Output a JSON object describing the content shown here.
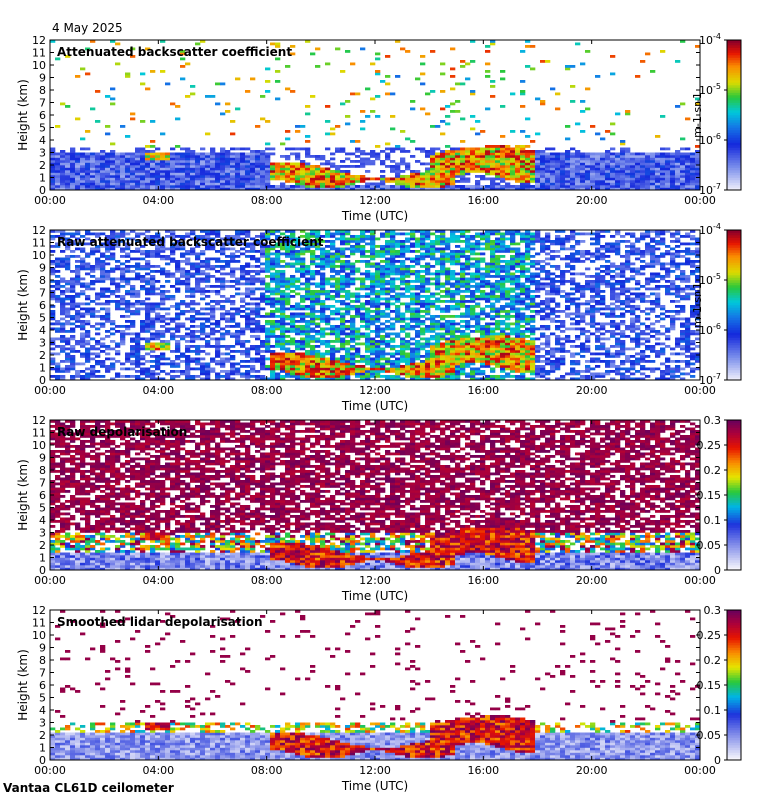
{
  "header": {
    "date": "4 May 2025"
  },
  "footer": {
    "instrument": "Vantaa CL61D ceilometer"
  },
  "chart_data": [
    {
      "type": "heatmap",
      "title": "Attenuated backscatter coefficient",
      "xlabel": "Time (UTC)",
      "ylabel": "Height (km)",
      "x_ticks": [
        "00:00",
        "04:00",
        "08:00",
        "12:00",
        "16:00",
        "20:00",
        "00:00"
      ],
      "y_ticks": [
        "0",
        "1",
        "2",
        "3",
        "4",
        "5",
        "6",
        "7",
        "8",
        "9",
        "10",
        "11",
        "12"
      ],
      "ylim": [
        0,
        12
      ],
      "colorbar": {
        "scale": "log",
        "ticks": [
          "10-4",
          "10-5",
          "10-6",
          "10-7"
        ],
        "unit": "m-1 sr-1"
      },
      "features": [
        {
          "start_h": 3.5,
          "end_h": 4.5,
          "base_km": 2.4,
          "top_km": 2.9,
          "level": "high"
        },
        {
          "start_h": 8.2,
          "end_h": 17.9,
          "base_km": 0.4,
          "top_km": 3.6,
          "level": "very high"
        }
      ]
    },
    {
      "type": "heatmap",
      "title": "Raw attenuated backscatter coefficient",
      "xlabel": "Time (UTC)",
      "ylabel": "Height (km)",
      "x_ticks": [
        "00:00",
        "04:00",
        "08:00",
        "12:00",
        "16:00",
        "20:00",
        "00:00"
      ],
      "y_ticks": [
        "0",
        "1",
        "2",
        "3",
        "4",
        "5",
        "6",
        "7",
        "8",
        "9",
        "10",
        "11",
        "12"
      ],
      "ylim": [
        0,
        12
      ],
      "colorbar": {
        "scale": "log",
        "ticks": [
          "10-4",
          "10-5",
          "10-6",
          "10-7"
        ],
        "unit": "m-1 sr-1"
      }
    },
    {
      "type": "heatmap",
      "title": "Raw depolarisation",
      "xlabel": "Time (UTC)",
      "ylabel": "Height (km)",
      "x_ticks": [
        "00:00",
        "04:00",
        "08:00",
        "12:00",
        "16:00",
        "20:00",
        "00:00"
      ],
      "y_ticks": [
        "0",
        "1",
        "2",
        "3",
        "4",
        "5",
        "6",
        "7",
        "8",
        "9",
        "10",
        "11",
        "12"
      ],
      "ylim": [
        0,
        12
      ],
      "colorbar": {
        "scale": "linear",
        "ticks": [
          "0.3",
          "0.25",
          "0.2",
          "0.15",
          "0.1",
          "0.05",
          "0"
        ],
        "range": [
          0,
          0.3
        ]
      }
    },
    {
      "type": "heatmap",
      "title": "Smoothed lidar depolarisation",
      "xlabel": "Time (UTC)",
      "ylabel": "Height (km)",
      "x_ticks": [
        "00:00",
        "04:00",
        "08:00",
        "12:00",
        "16:00",
        "20:00",
        "00:00"
      ],
      "y_ticks": [
        "0",
        "1",
        "2",
        "3",
        "4",
        "5",
        "6",
        "7",
        "8",
        "9",
        "10",
        "11",
        "12"
      ],
      "ylim": [
        0,
        12
      ],
      "colorbar": {
        "scale": "linear",
        "ticks": [
          "0.3",
          "0.25",
          "0.2",
          "0.15",
          "0.1",
          "0.05",
          "0"
        ],
        "range": [
          0,
          0.3
        ]
      }
    }
  ]
}
